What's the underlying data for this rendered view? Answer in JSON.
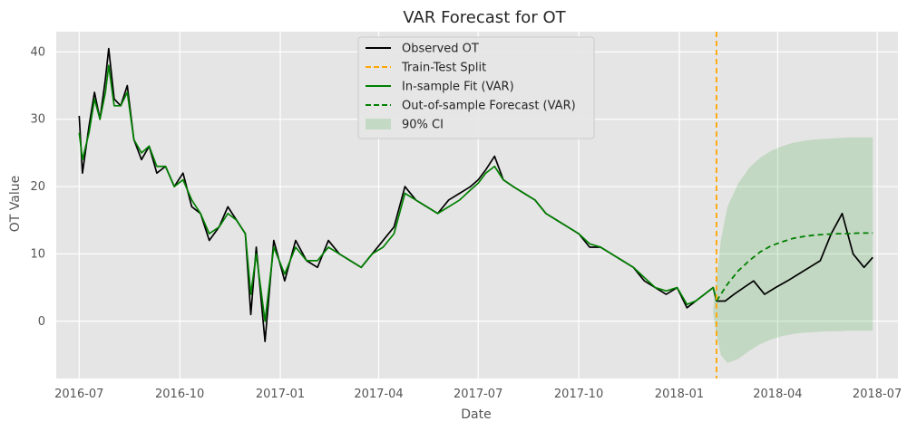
{
  "chart_data": {
    "type": "line",
    "title": "VAR Forecast for OT",
    "xlabel": "Date",
    "ylabel": "OT Value",
    "xlim": [
      "2016-06-10",
      "2018-07-20"
    ],
    "ylim": [
      -8.5,
      43
    ],
    "grid": true,
    "legend_position": "top-center",
    "x_ticks": [
      "2016-07",
      "2016-10",
      "2017-01",
      "2017-04",
      "2017-07",
      "2017-10",
      "2018-01",
      "2018-04",
      "2018-07"
    ],
    "y_ticks": [
      0,
      10,
      20,
      30,
      40
    ],
    "train_test_split": "2018-02-04",
    "colors": {
      "observed": "#000000",
      "split": "#ffa500",
      "fit": "#008000",
      "forecast": "#008000",
      "ci": "#2ca02c",
      "background": "#e5e5e5",
      "grid": "#ffffff"
    },
    "legend": [
      {
        "key": "observed",
        "label": "Observed OT"
      },
      {
        "key": "split",
        "label": "Train-Test Split"
      },
      {
        "key": "fit",
        "label": "In-sample Fit (VAR)"
      },
      {
        "key": "forecast",
        "label": "Out-of-sample Forecast (VAR)"
      },
      {
        "key": "ci",
        "label": "90% CI"
      }
    ],
    "series": [
      {
        "name": "Observed OT",
        "x": [
          "2016-07-01",
          "2016-07-04",
          "2016-07-10",
          "2016-07-15",
          "2016-07-20",
          "2016-07-25",
          "2016-07-28",
          "2016-08-02",
          "2016-08-08",
          "2016-08-14",
          "2016-08-20",
          "2016-08-27",
          "2016-09-03",
          "2016-09-10",
          "2016-09-18",
          "2016-09-26",
          "2016-10-04",
          "2016-10-12",
          "2016-10-20",
          "2016-10-28",
          "2016-11-06",
          "2016-11-14",
          "2016-11-22",
          "2016-11-30",
          "2016-12-05",
          "2016-12-10",
          "2016-12-18",
          "2016-12-26",
          "2017-01-05",
          "2017-01-15",
          "2017-01-25",
          "2017-02-04",
          "2017-02-14",
          "2017-02-24",
          "2017-03-06",
          "2017-03-16",
          "2017-03-26",
          "2017-04-05",
          "2017-04-15",
          "2017-04-25",
          "2017-05-05",
          "2017-05-15",
          "2017-05-25",
          "2017-06-04",
          "2017-06-14",
          "2017-06-24",
          "2017-07-01",
          "2017-07-08",
          "2017-07-16",
          "2017-07-24",
          "2017-08-02",
          "2017-08-12",
          "2017-08-22",
          "2017-09-01",
          "2017-09-11",
          "2017-09-21",
          "2017-10-01",
          "2017-10-11",
          "2017-10-21",
          "2017-10-31",
          "2017-11-10",
          "2017-11-20",
          "2017-11-30",
          "2017-12-10",
          "2017-12-20",
          "2017-12-30",
          "2018-01-08",
          "2018-01-16",
          "2018-01-24",
          "2018-02-01",
          "2018-02-04",
          "2018-02-12",
          "2018-02-20",
          "2018-03-01",
          "2018-03-10",
          "2018-03-20",
          "2018-03-30",
          "2018-04-10",
          "2018-04-20",
          "2018-04-30",
          "2018-05-10",
          "2018-05-20",
          "2018-05-30",
          "2018-06-09",
          "2018-06-19",
          "2018-06-27"
        ],
        "values": [
          30.5,
          22,
          29,
          34,
          30,
          36,
          40.5,
          33,
          32,
          35,
          27,
          24,
          26,
          22,
          23,
          20,
          22,
          17,
          16,
          12,
          14,
          17,
          15,
          13,
          1,
          11,
          -3,
          12,
          6,
          12,
          9,
          8,
          12,
          10,
          9,
          8,
          10,
          12,
          14,
          20,
          18,
          17,
          16,
          18,
          19,
          20,
          21,
          22.5,
          24.5,
          21,
          20,
          19,
          18,
          16,
          15,
          14,
          13,
          11,
          11,
          10,
          9,
          8,
          6,
          5,
          4,
          5,
          2,
          3,
          4,
          5,
          3,
          3,
          4,
          5,
          6,
          4,
          5,
          6,
          7,
          8,
          9,
          13,
          16,
          10,
          8,
          9.5
        ]
      },
      {
        "name": "In-sample Fit (VAR)",
        "x": [
          "2016-07-01",
          "2016-07-04",
          "2016-07-10",
          "2016-07-15",
          "2016-07-20",
          "2016-07-25",
          "2016-07-28",
          "2016-08-02",
          "2016-08-08",
          "2016-08-14",
          "2016-08-20",
          "2016-08-27",
          "2016-09-03",
          "2016-09-10",
          "2016-09-18",
          "2016-09-26",
          "2016-10-04",
          "2016-10-12",
          "2016-10-20",
          "2016-10-28",
          "2016-11-06",
          "2016-11-14",
          "2016-11-22",
          "2016-11-30",
          "2016-12-05",
          "2016-12-10",
          "2016-12-18",
          "2016-12-26",
          "2017-01-05",
          "2017-01-15",
          "2017-01-25",
          "2017-02-04",
          "2017-02-14",
          "2017-02-24",
          "2017-03-06",
          "2017-03-16",
          "2017-03-26",
          "2017-04-05",
          "2017-04-15",
          "2017-04-25",
          "2017-05-05",
          "2017-05-15",
          "2017-05-25",
          "2017-06-04",
          "2017-06-14",
          "2017-06-24",
          "2017-07-01",
          "2017-07-08",
          "2017-07-16",
          "2017-07-24",
          "2017-08-02",
          "2017-08-12",
          "2017-08-22",
          "2017-09-01",
          "2017-09-11",
          "2017-09-21",
          "2017-10-01",
          "2017-10-11",
          "2017-10-21",
          "2017-10-31",
          "2017-11-10",
          "2017-11-20",
          "2017-11-30",
          "2017-12-10",
          "2017-12-20",
          "2017-12-30",
          "2018-01-08",
          "2018-01-16",
          "2018-01-24",
          "2018-02-01",
          "2018-02-04"
        ],
        "values": [
          28,
          24,
          28,
          33,
          30,
          34,
          38,
          32,
          32,
          34,
          27,
          25,
          26,
          23,
          23,
          20,
          21,
          18,
          16,
          13,
          14,
          16,
          15,
          13,
          4,
          10,
          0,
          11,
          7,
          11,
          9,
          9,
          11,
          10,
          9,
          8,
          10,
          11,
          13,
          19,
          18,
          17,
          16,
          17,
          18,
          19.5,
          20.5,
          22,
          23,
          21,
          20,
          19,
          18,
          16,
          15,
          14,
          13,
          11.5,
          11,
          10,
          9,
          8,
          6.5,
          5,
          4.5,
          5,
          2.5,
          3,
          4,
          5,
          3
        ]
      },
      {
        "name": "Out-of-sample Forecast (VAR)",
        "x": [
          "2018-02-04",
          "2018-02-14",
          "2018-02-24",
          "2018-03-06",
          "2018-03-16",
          "2018-03-26",
          "2018-04-05",
          "2018-04-15",
          "2018-04-25",
          "2018-05-05",
          "2018-05-15",
          "2018-05-25",
          "2018-06-04",
          "2018-06-14",
          "2018-06-27"
        ],
        "values": [
          3,
          5.5,
          7.5,
          9,
          10.3,
          11.2,
          11.8,
          12.3,
          12.6,
          12.8,
          12.9,
          13,
          13,
          13.1,
          13.1
        ]
      }
    ],
    "ci_band": {
      "name": "90% CI",
      "x": [
        "2018-02-01",
        "2018-02-04",
        "2018-02-08",
        "2018-02-14",
        "2018-02-24",
        "2018-03-06",
        "2018-03-16",
        "2018-03-26",
        "2018-04-05",
        "2018-04-15",
        "2018-04-25",
        "2018-05-05",
        "2018-05-15",
        "2018-05-25",
        "2018-06-04",
        "2018-06-14",
        "2018-06-27"
      ],
      "lower": [
        1,
        -2,
        -5,
        -6.2,
        -5.6,
        -4.4,
        -3.4,
        -2.7,
        -2.2,
        -1.9,
        -1.7,
        -1.6,
        -1.5,
        -1.5,
        -1.4,
        -1.4,
        -1.4
      ],
      "upper": [
        2,
        6,
        12,
        17,
        20.5,
        22.8,
        24.3,
        25.3,
        26,
        26.5,
        26.8,
        27,
        27.1,
        27.2,
        27.3,
        27.3,
        27.3
      ]
    }
  }
}
